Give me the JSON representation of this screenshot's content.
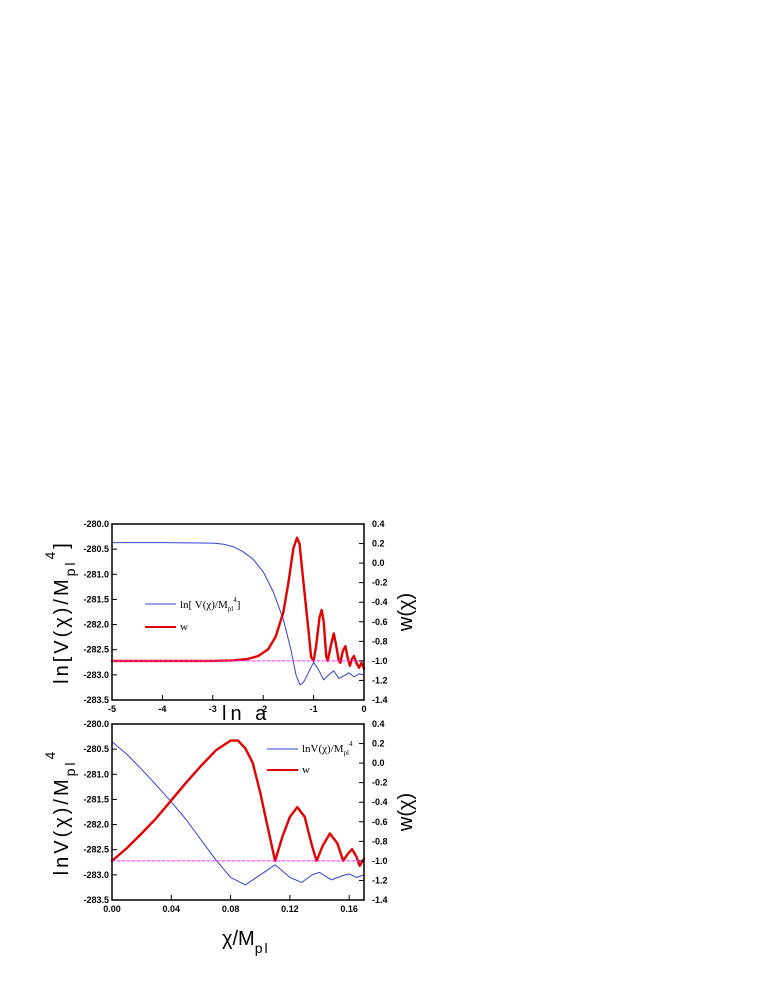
{
  "chart_data": [
    {
      "type": "line",
      "xlim": [
        -5,
        0
      ],
      "ylim_left": [
        -283.5,
        -280.0
      ],
      "ylim_right": [
        -1.4,
        0.4
      ],
      "x_ticks": [
        "-5",
        "-4",
        "-3",
        "-2",
        "-1",
        "0"
      ],
      "y_ticks_left": [
        "-280.0",
        "-280.5",
        "-281.0",
        "-281.5",
        "-282.0",
        "-282.5",
        "-283.0",
        "-283.5"
      ],
      "y_ticks_right": [
        "0.4",
        "0.2",
        "0.0",
        "-0.2",
        "-0.4",
        "-0.6",
        "-0.8",
        "-1.0",
        "-1.2",
        "-1.4"
      ],
      "xlabel": "ln a",
      "ylabel_left": "ln[V(χ)/M_pl^4]",
      "ylabel_right": "w(χ)",
      "legend_position": "left",
      "series": [
        {
          "name": "ln[ V(χ)/M_pl^4]",
          "axis": "left",
          "color": "#3344cc",
          "points": [
            [
              -5.0,
              -280.37
            ],
            [
              -4.0,
              -280.37
            ],
            [
              -3.0,
              -280.38
            ],
            [
              -2.8,
              -280.4
            ],
            [
              -2.6,
              -280.45
            ],
            [
              -2.4,
              -280.55
            ],
            [
              -2.2,
              -280.7
            ],
            [
              -2.0,
              -280.95
            ],
            [
              -1.8,
              -281.35
            ],
            [
              -1.6,
              -281.9
            ],
            [
              -1.45,
              -282.5
            ],
            [
              -1.35,
              -283.0
            ],
            [
              -1.27,
              -283.2
            ],
            [
              -1.2,
              -283.15
            ],
            [
              -1.1,
              -282.95
            ],
            [
              -1.0,
              -282.75
            ],
            [
              -0.9,
              -282.9
            ],
            [
              -0.8,
              -283.1
            ],
            [
              -0.7,
              -283.0
            ],
            [
              -0.6,
              -282.92
            ],
            [
              -0.5,
              -283.07
            ],
            [
              -0.4,
              -283.02
            ],
            [
              -0.3,
              -282.96
            ],
            [
              -0.2,
              -283.04
            ],
            [
              -0.1,
              -282.98
            ],
            [
              0.0,
              -283.0
            ]
          ]
        },
        {
          "name": "w",
          "axis": "right",
          "color": "#e00000",
          "points": [
            [
              -5.0,
              -1.0
            ],
            [
              -3.0,
              -1.0
            ],
            [
              -2.6,
              -0.995
            ],
            [
              -2.3,
              -0.98
            ],
            [
              -2.1,
              -0.95
            ],
            [
              -1.9,
              -0.88
            ],
            [
              -1.75,
              -0.75
            ],
            [
              -1.6,
              -0.5
            ],
            [
              -1.5,
              -0.2
            ],
            [
              -1.4,
              0.15
            ],
            [
              -1.33,
              0.26
            ],
            [
              -1.28,
              0.2
            ],
            [
              -1.2,
              -0.2
            ],
            [
              -1.1,
              -0.7
            ],
            [
              -1.05,
              -0.96
            ],
            [
              -1.0,
              -1.0
            ],
            [
              -0.95,
              -0.85
            ],
            [
              -0.88,
              -0.55
            ],
            [
              -0.84,
              -0.48
            ],
            [
              -0.8,
              -0.6
            ],
            [
              -0.75,
              -0.95
            ],
            [
              -0.72,
              -1.0
            ],
            [
              -0.66,
              -0.85
            ],
            [
              -0.6,
              -0.72
            ],
            [
              -0.55,
              -0.85
            ],
            [
              -0.5,
              -1.0
            ],
            [
              -0.47,
              -1.02
            ],
            [
              -0.42,
              -0.9
            ],
            [
              -0.37,
              -0.85
            ],
            [
              -0.32,
              -0.98
            ],
            [
              -0.28,
              -1.05
            ],
            [
              -0.24,
              -0.98
            ],
            [
              -0.2,
              -0.95
            ],
            [
              -0.15,
              -1.02
            ],
            [
              -0.1,
              -1.07
            ],
            [
              -0.05,
              -1.02
            ],
            [
              0.0,
              -1.08
            ]
          ]
        },
        {
          "name": "",
          "axis": "right",
          "color": "#ff33ff",
          "dashed": true,
          "points": [
            [
              -5.0,
              -1.0
            ],
            [
              0.0,
              -1.0
            ]
          ]
        }
      ]
    },
    {
      "type": "line",
      "xlim": [
        0.0,
        0.17
      ],
      "ylim_left": [
        -283.5,
        -280.0
      ],
      "ylim_right": [
        -1.4,
        0.4
      ],
      "x_ticks": [
        "0.00",
        "0.04",
        "0.08",
        "0.12",
        "0.16"
      ],
      "y_ticks_left": [
        "-280.0",
        "-280.5",
        "-281.0",
        "-281.5",
        "-282.0",
        "-282.5",
        "-283.0",
        "-283.5"
      ],
      "y_ticks_right": [
        "0.4",
        "0.2",
        "0.0",
        "-0.2",
        "-0.4",
        "-0.6",
        "-0.8",
        "-1.0",
        "-1.2",
        "-1.4"
      ],
      "xlabel": "χ/M_pl",
      "ylabel_left": "lnV(χ)/M_pl^4",
      "ylabel_right": "w(χ)",
      "legend_position": "top-right",
      "series": [
        {
          "name": "lnV(χ)/M_pl^4",
          "axis": "left",
          "color": "#3344cc",
          "points": [
            [
              0.0,
              -280.35
            ],
            [
              0.01,
              -280.6
            ],
            [
              0.02,
              -280.9
            ],
            [
              0.03,
              -281.22
            ],
            [
              0.04,
              -281.55
            ],
            [
              0.05,
              -281.9
            ],
            [
              0.06,
              -282.3
            ],
            [
              0.07,
              -282.7
            ],
            [
              0.08,
              -283.05
            ],
            [
              0.09,
              -283.2
            ],
            [
              0.1,
              -283.0
            ],
            [
              0.11,
              -282.8
            ],
            [
              0.12,
              -283.05
            ],
            [
              0.128,
              -283.15
            ],
            [
              0.135,
              -283.0
            ],
            [
              0.14,
              -282.95
            ],
            [
              0.148,
              -283.1
            ],
            [
              0.155,
              -283.02
            ],
            [
              0.16,
              -282.98
            ],
            [
              0.165,
              -283.05
            ],
            [
              0.17,
              -283.0
            ]
          ]
        },
        {
          "name": "w",
          "axis": "right",
          "color": "#e00000",
          "points": [
            [
              0.0,
              -1.0
            ],
            [
              0.01,
              -0.87
            ],
            [
              0.02,
              -0.72
            ],
            [
              0.03,
              -0.56
            ],
            [
              0.04,
              -0.38
            ],
            [
              0.05,
              -0.2
            ],
            [
              0.06,
              -0.03
            ],
            [
              0.07,
              0.13
            ],
            [
              0.08,
              0.23
            ],
            [
              0.085,
              0.23
            ],
            [
              0.09,
              0.15
            ],
            [
              0.095,
              0.0
            ],
            [
              0.1,
              -0.3
            ],
            [
              0.105,
              -0.65
            ],
            [
              0.11,
              -1.0
            ],
            [
              0.115,
              -0.75
            ],
            [
              0.12,
              -0.55
            ],
            [
              0.125,
              -0.45
            ],
            [
              0.13,
              -0.55
            ],
            [
              0.135,
              -0.85
            ],
            [
              0.138,
              -1.0
            ],
            [
              0.142,
              -0.85
            ],
            [
              0.147,
              -0.72
            ],
            [
              0.152,
              -0.82
            ],
            [
              0.156,
              -1.0
            ],
            [
              0.159,
              -0.93
            ],
            [
              0.162,
              -0.88
            ],
            [
              0.165,
              -0.96
            ],
            [
              0.167,
              -1.05
            ],
            [
              0.17,
              -0.98
            ]
          ]
        },
        {
          "name": "",
          "axis": "right",
          "color": "#ff33ff",
          "dashed": true,
          "points": [
            [
              0.0,
              -1.0
            ],
            [
              0.17,
              -1.0
            ]
          ]
        }
      ]
    }
  ]
}
